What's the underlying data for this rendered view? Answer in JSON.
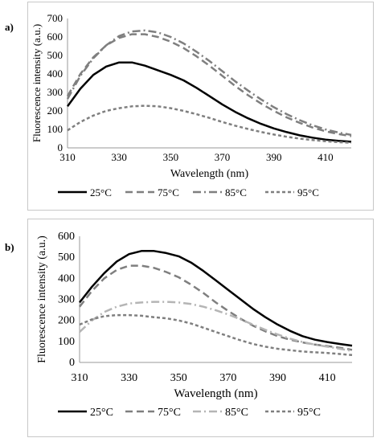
{
  "panels": [
    {
      "label": "a)"
    },
    {
      "label": "b)"
    }
  ],
  "chart_data": [
    {
      "type": "line",
      "panel": "a)",
      "xlabel": "Wavelength (nm)",
      "ylabel": "Fluorescence intensity (a.u.)",
      "xlim": [
        310,
        420
      ],
      "ylim": [
        0,
        700
      ],
      "xticks": [
        310,
        330,
        350,
        370,
        390,
        410
      ],
      "yticks": [
        0,
        100,
        200,
        300,
        400,
        500,
        600,
        700
      ],
      "grid": false,
      "legend_position": "bottom",
      "x": [
        310,
        315,
        320,
        325,
        330,
        335,
        340,
        345,
        350,
        355,
        360,
        365,
        370,
        375,
        380,
        385,
        390,
        395,
        400,
        405,
        410,
        415,
        420
      ],
      "series": [
        {
          "name": "25°C",
          "color": "#000000",
          "dash": "solid",
          "values": [
            225,
            320,
            395,
            440,
            462,
            462,
            445,
            420,
            395,
            365,
            325,
            280,
            235,
            195,
            160,
            130,
            105,
            85,
            68,
            55,
            45,
            38,
            33
          ]
        },
        {
          "name": "75°C",
          "color": "#7f7f7f",
          "dash": "dash",
          "values": [
            280,
            400,
            490,
            555,
            595,
            615,
            615,
            600,
            575,
            540,
            495,
            445,
            390,
            335,
            285,
            240,
            200,
            165,
            135,
            110,
            90,
            75,
            63
          ]
        },
        {
          "name": "85°C",
          "color": "#7f7f7f",
          "dash": "dashdot",
          "values": [
            265,
            390,
            485,
            555,
            605,
            630,
            635,
            625,
            600,
            565,
            520,
            470,
            415,
            360,
            310,
            262,
            220,
            182,
            150,
            122,
            100,
            83,
            70
          ]
        },
        {
          "name": "95°C",
          "color": "#7f7f7f",
          "dash": "dot",
          "values": [
            95,
            140,
            175,
            200,
            215,
            225,
            228,
            225,
            215,
            200,
            182,
            162,
            140,
            120,
            102,
            86,
            72,
            60,
            50,
            42,
            36,
            31,
            28
          ]
        }
      ]
    },
    {
      "type": "line",
      "panel": "b)",
      "xlabel": "Wavelength (nm)",
      "ylabel": "Fluorescence intensity (a.u.)",
      "xlim": [
        310,
        420
      ],
      "ylim": [
        0,
        600
      ],
      "xticks": [
        310,
        330,
        350,
        370,
        390,
        410
      ],
      "yticks": [
        0,
        100,
        200,
        300,
        400,
        500,
        600
      ],
      "grid": false,
      "legend_position": "bottom",
      "x": [
        310,
        315,
        320,
        325,
        330,
        335,
        340,
        345,
        350,
        355,
        360,
        365,
        370,
        375,
        380,
        385,
        390,
        395,
        400,
        405,
        410,
        415,
        420
      ],
      "series": [
        {
          "name": "25°C",
          "color": "#000000",
          "dash": "solid",
          "values": [
            285,
            360,
            425,
            480,
            515,
            530,
            530,
            520,
            505,
            475,
            435,
            390,
            345,
            300,
            255,
            215,
            180,
            150,
            125,
            108,
            97,
            88,
            80
          ]
        },
        {
          "name": "75°C",
          "color": "#7f7f7f",
          "dash": "dash",
          "values": [
            265,
            340,
            400,
            440,
            460,
            460,
            450,
            430,
            405,
            370,
            330,
            285,
            245,
            208,
            175,
            148,
            125,
            108,
            95,
            85,
            78,
            70,
            60
          ]
        },
        {
          "name": "85°C",
          "color": "#b5b5b5",
          "dash": "dashdot",
          "values": [
            145,
            200,
            240,
            265,
            280,
            285,
            288,
            288,
            285,
            278,
            265,
            248,
            228,
            205,
            180,
            155,
            133,
            113,
            97,
            85,
            75,
            65,
            55
          ]
        },
        {
          "name": "95°C",
          "color": "#7f7f7f",
          "dash": "dot",
          "values": [
            180,
            205,
            220,
            225,
            225,
            222,
            215,
            210,
            200,
            185,
            165,
            145,
            125,
            105,
            88,
            75,
            65,
            58,
            52,
            48,
            45,
            40,
            35
          ]
        }
      ]
    }
  ]
}
